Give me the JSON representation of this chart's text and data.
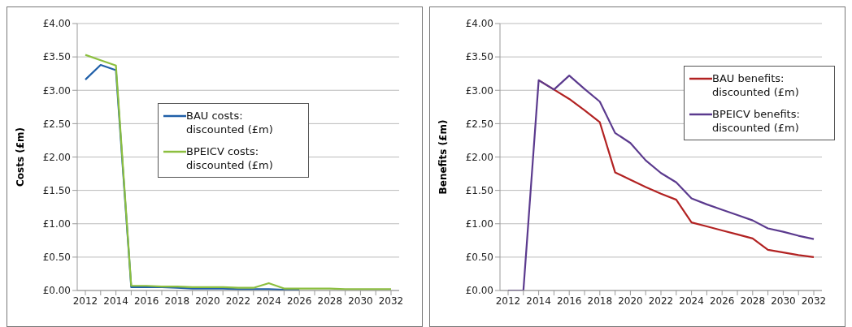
{
  "chart_data": [
    {
      "type": "line",
      "ylabel": "Costs (£m)",
      "categories": [
        "2012",
        null,
        "2014",
        null,
        "2016",
        null,
        "2018",
        null,
        "2020",
        null,
        "2022",
        null,
        "2024",
        null,
        "2026",
        null,
        "2028",
        null,
        "2030",
        null,
        "2032"
      ],
      "series": [
        {
          "name": "BAU costs: discounted (£m)",
          "color": "#1f5fa8",
          "values": [
            3.16,
            3.38,
            3.3,
            0.05,
            0.05,
            0.05,
            0.04,
            0.03,
            0.03,
            0.03,
            0.02,
            0.02,
            0.02,
            0.01,
            0.01,
            null,
            null,
            null,
            null,
            null,
            null
          ]
        },
        {
          "name": "BPEICV costs: discounted (£m)",
          "color": "#8cbf3f",
          "values": [
            3.53,
            3.45,
            3.37,
            0.07,
            0.07,
            0.06,
            0.06,
            0.05,
            0.05,
            0.05,
            0.04,
            0.04,
            0.11,
            0.03,
            0.03,
            0.03,
            0.03,
            0.02,
            0.02,
            0.02,
            0.02
          ]
        }
      ],
      "ylim": [
        0,
        4
      ],
      "yticks": [
        {
          "value": 0,
          "label": "£0.00"
        },
        {
          "value": 0.5,
          "label": "£0.50"
        },
        {
          "value": 1,
          "label": "£1.00"
        },
        {
          "value": 1.5,
          "label": "£1.50"
        },
        {
          "value": 2,
          "label": "£2.00"
        },
        {
          "value": 2.5,
          "label": "£2.50"
        },
        {
          "value": 3,
          "label": "£3.00"
        },
        {
          "value": 3.5,
          "label": "£3.50"
        },
        {
          "value": 4,
          "label": "£4.00"
        }
      ],
      "grid": "y",
      "legend": "top",
      "marker": "none",
      "line_style": "solid"
    },
    {
      "type": "line",
      "ylabel": "Benefits (£m)",
      "categories": [
        "2012",
        null,
        "2014",
        null,
        "2016",
        null,
        "2018",
        null,
        "2020",
        null,
        "2022",
        null,
        "2024",
        null,
        "2026",
        null,
        "2028",
        null,
        "2030",
        null,
        "2032"
      ],
      "series": [
        {
          "name": "BAU benefits: discounted (£m)",
          "color": "#b22222",
          "values": [
            null,
            null,
            3.15,
            3.01,
            2.87,
            2.7,
            2.52,
            1.77,
            1.66,
            1.55,
            1.45,
            1.36,
            1.02,
            0.96,
            0.9,
            0.84,
            0.78,
            0.61,
            0.57,
            0.53,
            0.5
          ]
        },
        {
          "name": "BPEICV benefits: discounted (£m)",
          "color": "#5b3a8e",
          "values": [
            0,
            0,
            3.15,
            3.01,
            3.22,
            3.02,
            2.83,
            2.36,
            2.21,
            1.95,
            1.76,
            1.62,
            1.38,
            1.29,
            1.21,
            1.13,
            1.05,
            0.93,
            0.88,
            0.82,
            0.77
          ]
        }
      ],
      "ylim": [
        0,
        4
      ],
      "yticks": [
        {
          "value": 0,
          "label": "£0.00"
        },
        {
          "value": 0.5,
          "label": "£0.50"
        },
        {
          "value": 1,
          "label": "£1.00"
        },
        {
          "value": 1.5,
          "label": "£1.50"
        },
        {
          "value": 2,
          "label": "£2.00"
        },
        {
          "value": 2.5,
          "label": "£2.50"
        },
        {
          "value": 3,
          "label": "£3.00"
        },
        {
          "value": 3.5,
          "label": "£3.50"
        },
        {
          "value": 4,
          "label": "£4.00"
        }
      ],
      "grid": "y",
      "legend": "top right",
      "marker": "none",
      "line_style": "solid"
    }
  ]
}
